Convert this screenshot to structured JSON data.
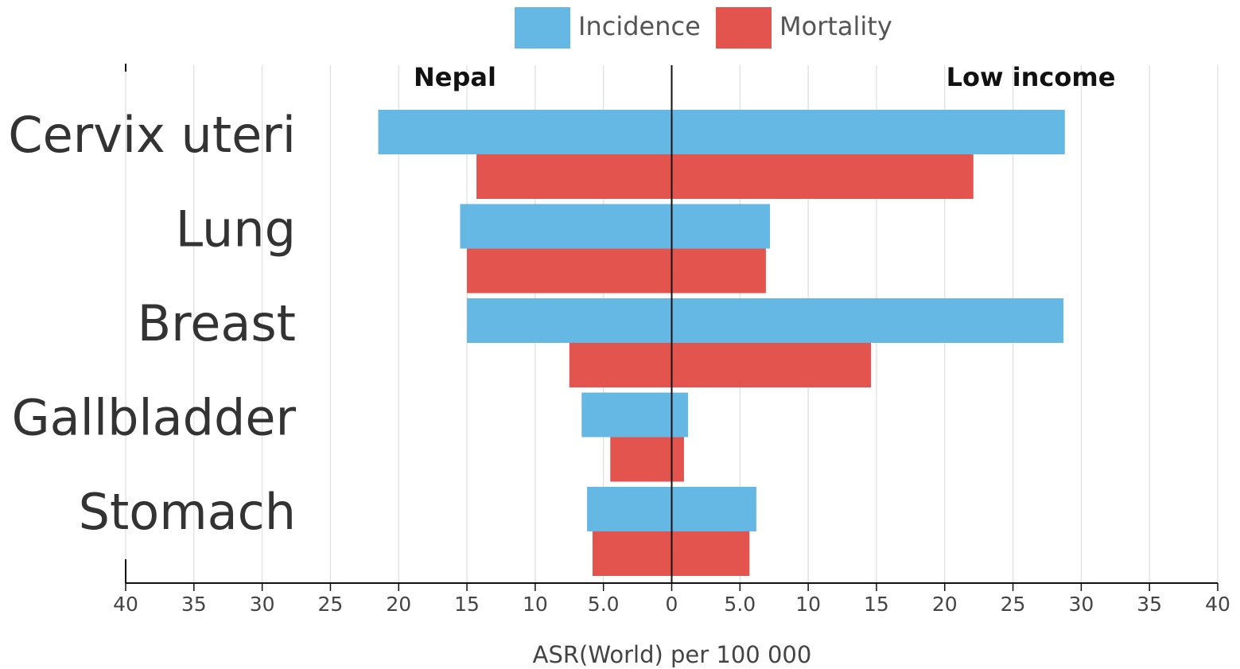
{
  "chart_data": {
    "type": "bar",
    "orientation": "horizontal-diverging",
    "xlabel": "ASR(World) per 100 000",
    "left_panel_label": "Nepal",
    "right_panel_label": "Low income",
    "xlim": [
      -40,
      40
    ],
    "tick_values": [
      -40,
      -35,
      -30,
      -25,
      -20,
      -15,
      -10,
      -5,
      0,
      5,
      10,
      15,
      20,
      25,
      30,
      35,
      40
    ],
    "tick_labels": [
      "40",
      "35",
      "30",
      "25",
      "20",
      "15",
      "10",
      "5.0",
      "0",
      "5.0",
      "10",
      "15",
      "20",
      "25",
      "30",
      "35",
      "40"
    ],
    "grid": true,
    "legend": {
      "position": "top-center",
      "entries": [
        {
          "name": "Incidence",
          "color": "#66b8e4"
        },
        {
          "name": "Mortality",
          "color": "#e4544f"
        }
      ]
    },
    "categories": [
      "Cervix uteri",
      "Lung",
      "Breast",
      "Gallbladder",
      "Stomach"
    ],
    "series": [
      {
        "name": "Incidence",
        "side": "Nepal",
        "values": [
          21.5,
          15.5,
          15.0,
          6.6,
          6.2
        ]
      },
      {
        "name": "Incidence",
        "side": "Low income",
        "values": [
          28.8,
          7.2,
          28.7,
          1.2,
          6.2
        ]
      },
      {
        "name": "Mortality",
        "side": "Nepal",
        "values": [
          14.3,
          15.0,
          7.5,
          4.5,
          5.8
        ]
      },
      {
        "name": "Mortality",
        "side": "Low income",
        "values": [
          22.1,
          6.9,
          14.6,
          0.9,
          5.7
        ]
      }
    ]
  }
}
